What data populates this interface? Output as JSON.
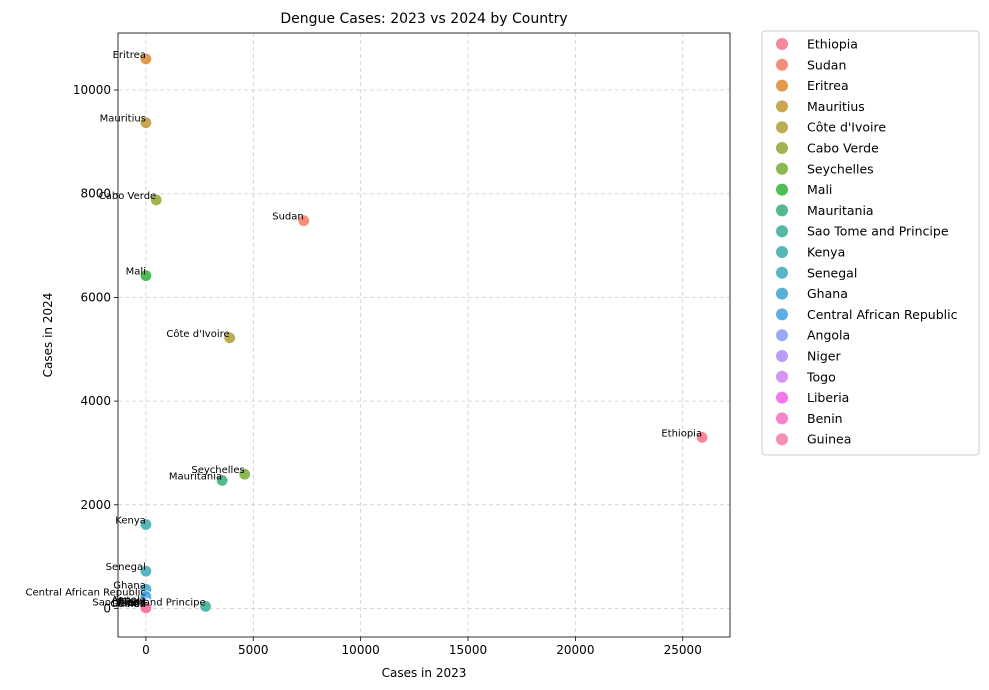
{
  "chart_data": {
    "type": "scatter",
    "title": "Dengue Cases: 2023 vs 2024 by Country",
    "xlabel": "Cases in 2023",
    "ylabel": "Cases in 2024",
    "xlim": [
      -1300,
      27200
    ],
    "ylim": [
      -550,
      11100
    ],
    "xticks": [
      0,
      5000,
      10000,
      15000,
      20000,
      25000
    ],
    "yticks": [
      0,
      2000,
      4000,
      6000,
      8000,
      10000
    ],
    "grid": true,
    "legend_position": "outside-right",
    "points": [
      {
        "name": "Ethiopia",
        "x": 25900,
        "y": 3300,
        "color": "#f77189"
      },
      {
        "name": "Sudan",
        "x": 7350,
        "y": 7480,
        "color": "#f27c62"
      },
      {
        "name": "Eritrea",
        "x": 0,
        "y": 10600,
        "color": "#dc8932"
      },
      {
        "name": "Mauritius",
        "x": 0,
        "y": 9370,
        "color": "#c39532"
      },
      {
        "name": "Côte d'Ivoire",
        "x": 3900,
        "y": 5220,
        "color": "#ae9d31"
      },
      {
        "name": "Cabo Verde",
        "x": 480,
        "y": 7880,
        "color": "#97a431"
      },
      {
        "name": "Seychelles",
        "x": 4600,
        "y": 2590,
        "color": "#77ab31"
      },
      {
        "name": "Mali",
        "x": 0,
        "y": 6420,
        "color": "#33b039"
      },
      {
        "name": "Mauritania",
        "x": 3550,
        "y": 2470,
        "color": "#35ae7c"
      },
      {
        "name": "Sao Tome and Principe",
        "x": 2780,
        "y": 40,
        "color": "#36ad98"
      },
      {
        "name": "Kenya",
        "x": 0,
        "y": 1620,
        "color": "#38aaab"
      },
      {
        "name": "Senegal",
        "x": 0,
        "y": 720,
        "color": "#3aa8bb"
      },
      {
        "name": "Ghana",
        "x": 0,
        "y": 370,
        "color": "#3ca4cb"
      },
      {
        "name": "Central African Republic",
        "x": 0,
        "y": 230,
        "color": "#42a0e0"
      },
      {
        "name": "Angola",
        "x": 0,
        "y": 90,
        "color": "#8a99f2"
      },
      {
        "name": "Niger",
        "x": 0,
        "y": 70,
        "color": "#ae8df5"
      },
      {
        "name": "Togo",
        "x": 0,
        "y": 50,
        "color": "#d07ff4"
      },
      {
        "name": "Liberia",
        "x": 0,
        "y": 30,
        "color": "#f161e8"
      },
      {
        "name": "Benin",
        "x": 0,
        "y": 20,
        "color": "#f46fc4"
      },
      {
        "name": "Guinea",
        "x": 0,
        "y": 10,
        "color": "#f47aa6"
      }
    ]
  }
}
